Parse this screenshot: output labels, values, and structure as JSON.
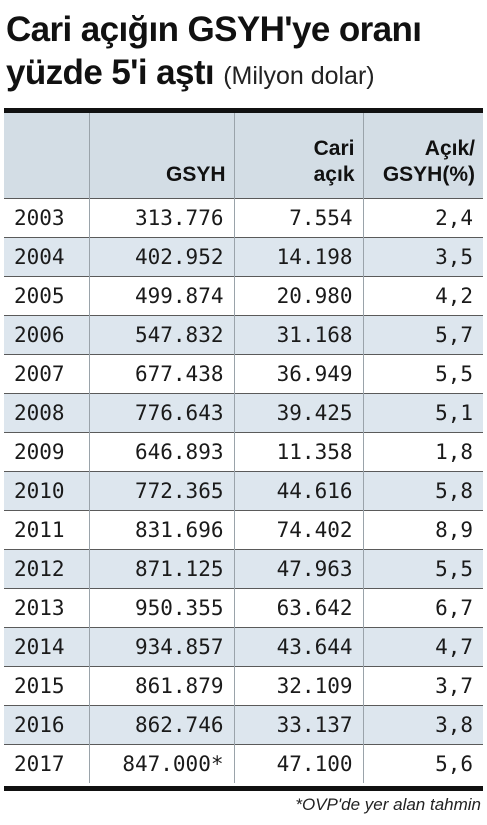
{
  "headline": {
    "title": "Cari açığın GSYH'ye oranı yüzde 5'i aştı",
    "unit_note": "(Milyon dolar)"
  },
  "table": {
    "headers": {
      "year": "",
      "gdp": "GSYH",
      "deficit_line1": "Cari",
      "deficit_line2": "açık",
      "ratio_line1": "Açık/",
      "ratio_line2": "GSYH(%)"
    },
    "rows": [
      {
        "year": "2003",
        "gdp": "313.776",
        "deficit": "7.554",
        "ratio": "2,4"
      },
      {
        "year": "2004",
        "gdp": "402.952",
        "deficit": "14.198",
        "ratio": "3,5"
      },
      {
        "year": "2005",
        "gdp": "499.874",
        "deficit": "20.980",
        "ratio": "4,2"
      },
      {
        "year": "2006",
        "gdp": "547.832",
        "deficit": "31.168",
        "ratio": "5,7"
      },
      {
        "year": "2007",
        "gdp": "677.438",
        "deficit": "36.949",
        "ratio": "5,5"
      },
      {
        "year": "2008",
        "gdp": "776.643",
        "deficit": "39.425",
        "ratio": "5,1"
      },
      {
        "year": "2009",
        "gdp": "646.893",
        "deficit": "11.358",
        "ratio": "1,8"
      },
      {
        "year": "2010",
        "gdp": "772.365",
        "deficit": "44.616",
        "ratio": "5,8"
      },
      {
        "year": "2011",
        "gdp": "831.696",
        "deficit": "74.402",
        "ratio": "8,9"
      },
      {
        "year": "2012",
        "gdp": "871.125",
        "deficit": "47.963",
        "ratio": "5,5"
      },
      {
        "year": "2013",
        "gdp": "950.355",
        "deficit": "63.642",
        "ratio": "6,7"
      },
      {
        "year": "2014",
        "gdp": "934.857",
        "deficit": "43.644",
        "ratio": "4,7"
      },
      {
        "year": "2015",
        "gdp": "861.879",
        "deficit": "32.109",
        "ratio": "3,7"
      },
      {
        "year": "2016",
        "gdp": "862.746",
        "deficit": "33.137",
        "ratio": "3,8"
      },
      {
        "year": "2017",
        "gdp": "847.000*",
        "deficit": "47.100",
        "ratio": "5,6"
      }
    ]
  },
  "footnote": "*OVP'de yer alan tahmin",
  "colors": {
    "header_bg": "#d3dde5",
    "stripe_bg": "#dde6ee",
    "rule": "#111111"
  }
}
